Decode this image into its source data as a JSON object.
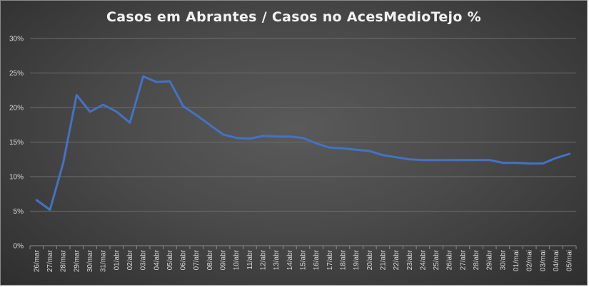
{
  "chart_data": {
    "type": "line",
    "title": "Casos em Abrantes / Casos no AcesMedioTejo %",
    "xlabel": "",
    "ylabel": "",
    "ylim": [
      0,
      30
    ],
    "y_ticks": [
      "0%",
      "5%",
      "10%",
      "15%",
      "20%",
      "25%",
      "30%"
    ],
    "grid": true,
    "legend": "none",
    "line_color": "#4472c4",
    "categories": [
      "26/mar",
      "27/mar",
      "28/mar",
      "29/mar",
      "30/mar",
      "31/mar",
      "01/abr",
      "02/abr",
      "03/abr",
      "04/abr",
      "05/abr",
      "06/abr",
      "07/abr",
      "08/abr",
      "09/abr",
      "10/abr",
      "11/abr",
      "12/abr",
      "13/abr",
      "14/abr",
      "15/abr",
      "16/abr",
      "17/abr",
      "18/abr",
      "19/abr",
      "20/abr",
      "21/abr",
      "22/abr",
      "23/abr",
      "24/abr",
      "25/abr",
      "26/abr",
      "27/abr",
      "28/abr",
      "29/abr",
      "30/abr",
      "01/mai",
      "02/mai",
      "03/mai",
      "04/mai",
      "05/mai"
    ],
    "series": [
      {
        "values": [
          6.6,
          5.2,
          12.0,
          21.8,
          19.4,
          20.4,
          19.4,
          17.8,
          24.5,
          23.7,
          23.8,
          20.2,
          18.9,
          17.5,
          16.1,
          15.6,
          15.5,
          15.9,
          15.8,
          15.8,
          15.6,
          14.8,
          14.2,
          14.1,
          13.9,
          13.7,
          13.1,
          12.8,
          12.5,
          12.4,
          12.4,
          12.4,
          12.4,
          12.4,
          12.4,
          12.0,
          12.0,
          11.9,
          11.9,
          12.7,
          13.3
        ]
      }
    ]
  }
}
